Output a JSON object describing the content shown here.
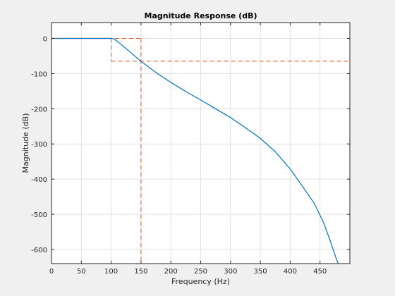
{
  "chart_data": {
    "type": "line",
    "title": "Magnitude Response (dB)",
    "xlabel": "Frequency (Hz)",
    "ylabel": "Magnitude (dB)",
    "xlim": [
      0,
      500
    ],
    "ylim": [
      -640,
      45
    ],
    "xticks": [
      0,
      50,
      100,
      150,
      200,
      250,
      300,
      350,
      400,
      450
    ],
    "yticks": [
      0,
      -100,
      -200,
      -300,
      -400,
      -500,
      -600
    ],
    "grid": true,
    "series": [
      {
        "color": "#0072bd",
        "x": [
          0,
          100,
          105,
          110,
          120,
          130,
          140,
          150,
          175,
          200,
          225,
          250,
          275,
          300,
          325,
          350,
          375,
          400,
          420,
          440,
          455,
          465,
          472,
          478,
          482
        ],
        "y": [
          0,
          0,
          -2,
          -8,
          -22,
          -36,
          -51,
          -65,
          -97,
          -125,
          -151,
          -175,
          -200,
          -225,
          -254,
          -284,
          -322,
          -371,
          -419,
          -468,
          -520,
          -565,
          -600,
          -630,
          -645
        ]
      }
    ],
    "spec_mask": {
      "color": "#d95319",
      "passband_edge": 100,
      "stopband_edge": 150,
      "passband_ripple": 0,
      "stopband_attenuation": -65
    }
  }
}
